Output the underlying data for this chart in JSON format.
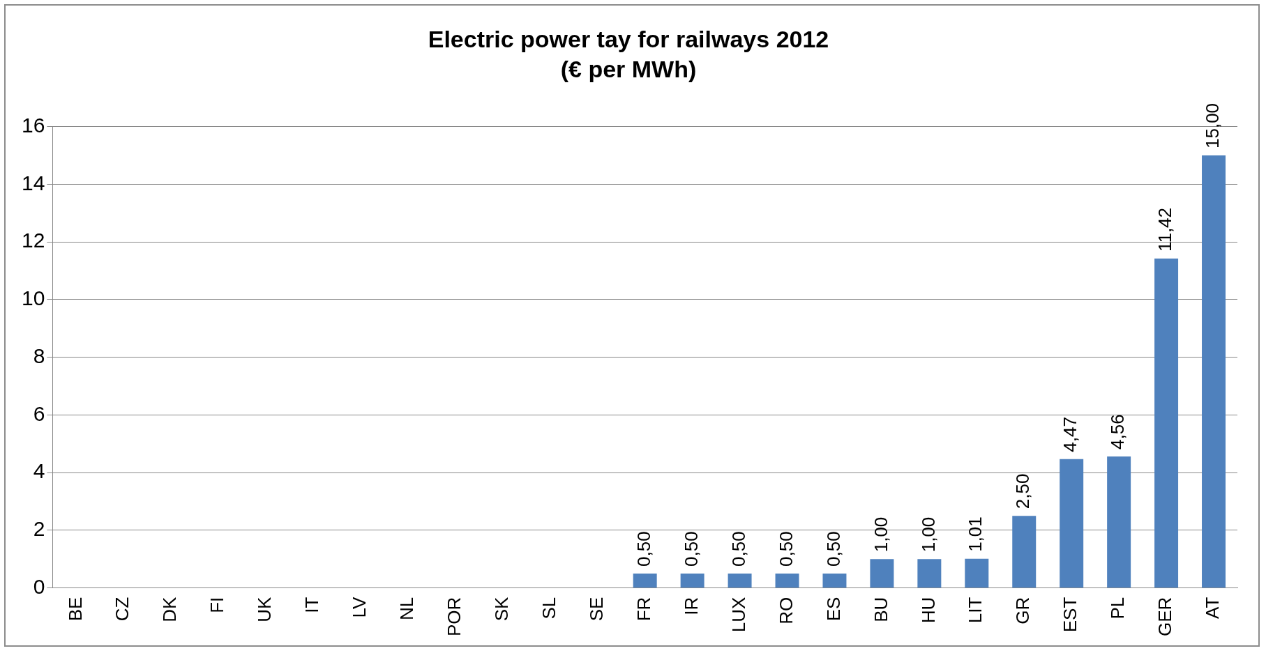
{
  "chart_data": {
    "type": "bar",
    "title": "Electric power tay for railways 2012",
    "subtitle": "(€ per MWh)",
    "categories": [
      "BE",
      "CZ",
      "DK",
      "FI",
      "UK",
      "IT",
      "LV",
      "NL",
      "POR",
      "SK",
      "SL",
      "SE",
      "FR",
      "IR",
      "LUX",
      "RO",
      "ES",
      "BU",
      "HU",
      "LIT",
      "GR",
      "EST",
      "PL",
      "GER",
      "AT"
    ],
    "values": [
      0,
      0,
      0,
      0,
      0,
      0,
      0,
      0,
      0,
      0,
      0,
      0,
      0.5,
      0.5,
      0.5,
      0.5,
      0.5,
      1,
      1,
      1.01,
      2.5,
      4.47,
      4.56,
      11.42,
      15
    ],
    "value_labels": [
      null,
      null,
      null,
      null,
      null,
      null,
      null,
      null,
      null,
      null,
      null,
      null,
      "0,50",
      "0,50",
      "0,50",
      "0,50",
      "0,50",
      "1,00",
      "1,00",
      "1,01",
      "2,50",
      "4,47",
      "4,56",
      "11,42",
      "15,00"
    ],
    "color": "#4f81bd",
    "ylim": [
      0,
      16
    ],
    "yticks": [
      0,
      2,
      4,
      6,
      8,
      10,
      12,
      14,
      16
    ],
    "grid": "y",
    "legend": false
  }
}
